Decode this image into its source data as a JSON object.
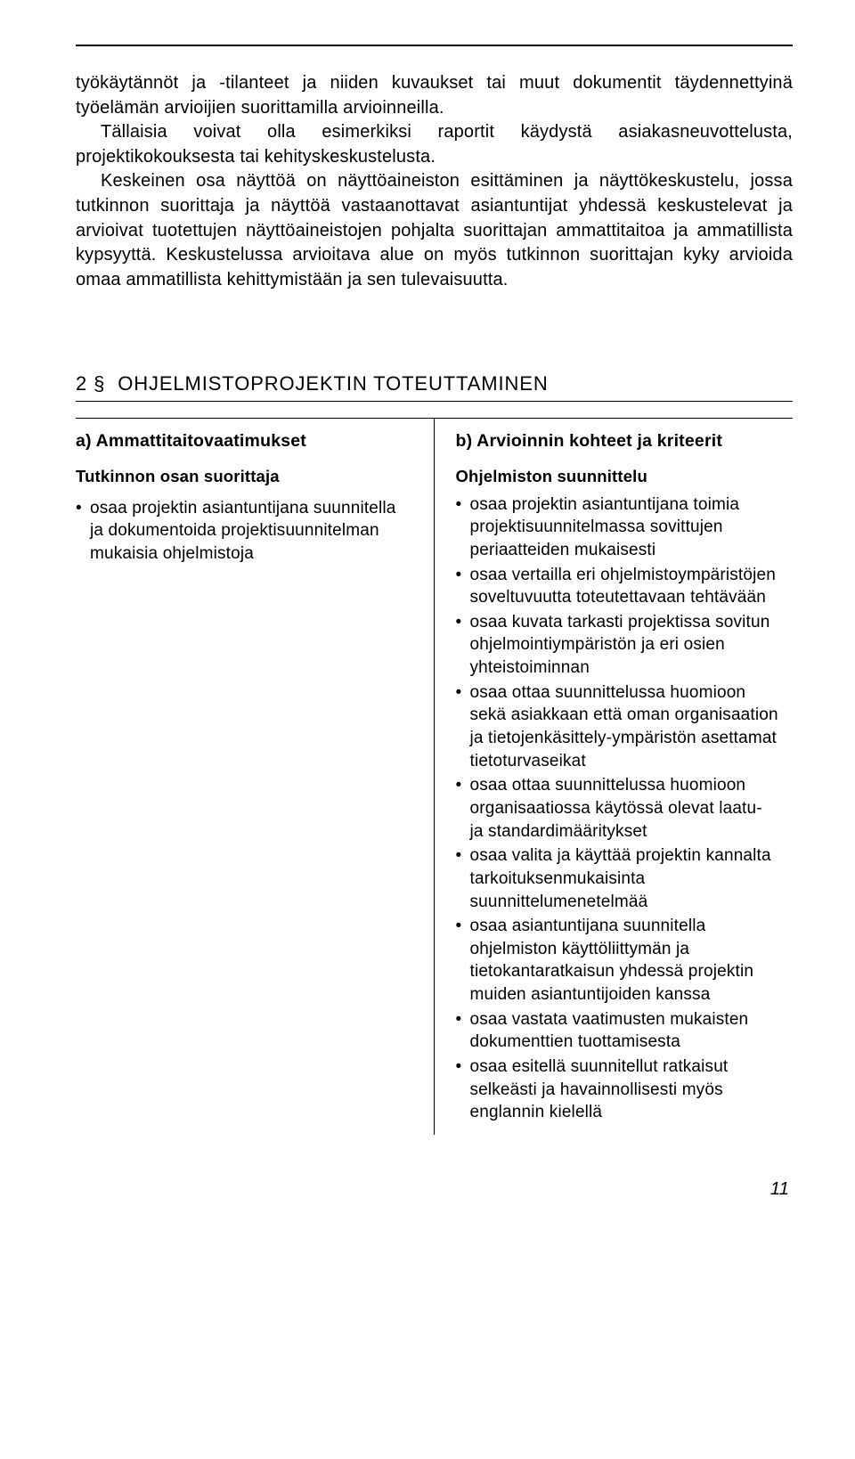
{
  "intro": {
    "p1": "työkäytännöt ja -tilanteet ja niiden kuvaukset tai muut dokumentit täydennettyinä työelämän arvioijien suorittamilla arvioinneilla.",
    "p2": "Tällaisia voivat olla esimerkiksi raportit käydystä asiakasneuvottelusta, projektikokouksesta tai kehityskeskustelusta.",
    "p3": "Keskeinen osa näyttöä on näyttöaineiston esittäminen ja näyttökeskustelu, jossa tutkinnon suorittaja ja näyttöä vastaanottavat asiantuntijat yhdessä keskustelevat ja arvioivat tuotettujen näyttöaineistojen pohjalta suorittajan ammattitaitoa ja ammatillista kypsyyttä. Keskustelussa arvioitava alue on myös tutkinnon suorittajan kyky arvioida omaa ammatillista kehittymistään ja sen tulevaisuutta."
  },
  "section": {
    "number": "2 §",
    "title": "OHJELMISTOPROJEKTIN TOTEUTTAMINEN"
  },
  "left": {
    "heading": "a) Ammattitaitovaatimukset",
    "subheading": "Tutkinnon osan suorittaja",
    "items": [
      "osaa projektin asiantuntijana suunnitella ja dokumentoida projektisuunnitelman mukaisia ohjelmistoja"
    ]
  },
  "right": {
    "heading": "b) Arvioinnin kohteet ja kriteerit",
    "subheading": "Ohjelmiston suunnittelu",
    "items": [
      "osaa projektin asiantuntijana toimia projektisuunnitelmassa sovittujen periaatteiden mukaisesti",
      "osaa vertailla eri ohjelmistoympäristöjen soveltuvuutta toteutettavaan tehtävään",
      "osaa kuvata tarkasti projektissa sovitun ohjelmointiympäristön ja eri osien yhteistoiminnan",
      "osaa ottaa suunnittelussa huomioon sekä asiakkaan että oman organisaation ja tietojenkäsittely-ympäristön asettamat tietoturvaseikat",
      "osaa ottaa suunnittelussa huomioon organisaatiossa käytössä olevat laatu- ja standardimääritykset",
      "osaa valita ja käyttää projektin kannalta tarkoituksenmukaisinta suunnittelumenetelmää",
      "osaa asiantuntijana suunnitella ohjelmiston käyttöliittymän ja tietokantaratkaisun yhdessä projektin muiden asiantuntijoiden kanssa",
      "osaa vastata vaatimusten mukaisten dokumenttien tuottamisesta",
      "osaa esitellä suunnitellut ratkaisut selkeästi ja havainnollisesti myös englannin kielellä"
    ]
  },
  "page_number": "11"
}
